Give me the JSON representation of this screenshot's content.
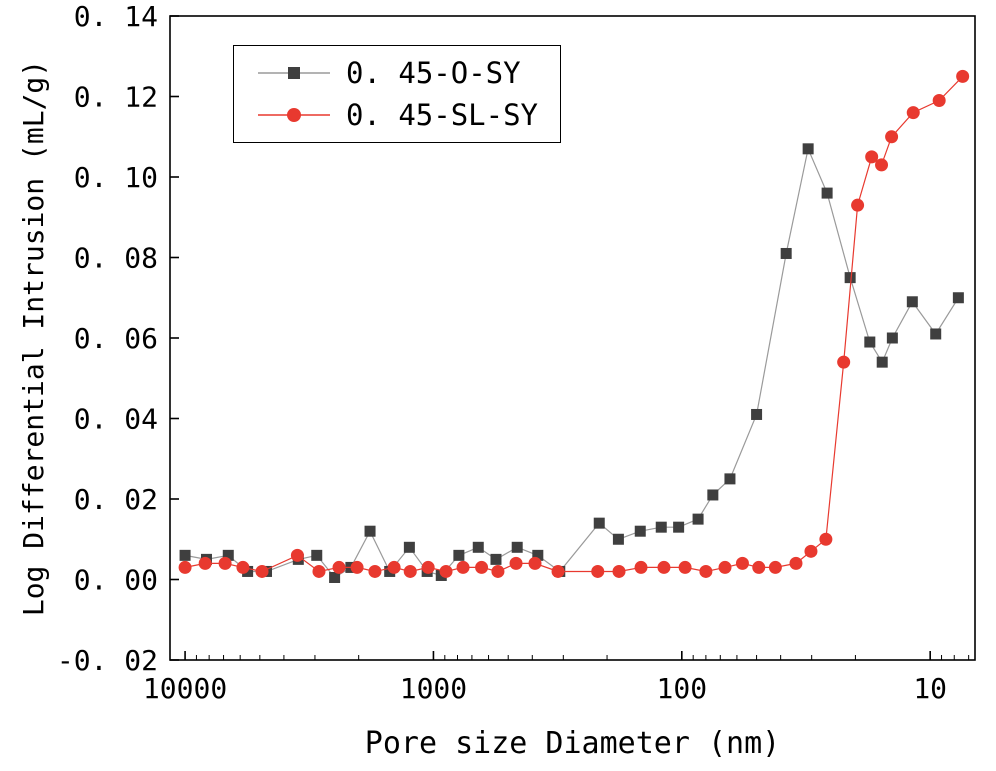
{
  "figure": {
    "background": "#ffffff"
  },
  "chart_data": {
    "type": "line",
    "xlabel": "Pore size Diameter (nm)",
    "ylabel": "Log Differential Intrusion (mL/g)",
    "x_scale": "log-reversed",
    "x_range": [
      11500,
      6.6
    ],
    "y_range": [
      -0.02,
      0.14
    ],
    "x_ticks": [
      10000,
      1000,
      100,
      10
    ],
    "x_tick_labels": [
      "10000",
      "1000",
      "100",
      "10"
    ],
    "y_ticks": [
      -0.02,
      0.0,
      0.02,
      0.04,
      0.06,
      0.08,
      0.1,
      0.12,
      0.14
    ],
    "y_tick_labels": [
      "-0. 02",
      "0. 00",
      "0. 02",
      "0. 04",
      "0. 06",
      "0. 08",
      "0. 10",
      "0. 12",
      "0. 14"
    ],
    "legend_position": "top-left",
    "series": [
      {
        "name": "0. 45-O-SY",
        "marker": "square",
        "marker_color": "#3f3f3f",
        "line_color": "#9a9a9a",
        "x": [
          10000,
          8200,
          6700,
          5600,
          4700,
          3500,
          2950,
          2500,
          2150,
          1800,
          1500,
          1250,
          1060,
          930,
          790,
          660,
          560,
          460,
          380,
          310,
          215,
          180,
          147,
          121,
          103,
          86,
          75,
          64,
          50,
          38,
          31,
          26,
          21,
          17.5,
          15.6,
          14.2,
          11.8,
          9.5,
          7.7
        ],
        "y": [
          0.006,
          0.005,
          0.006,
          0.002,
          0.002,
          0.005,
          0.006,
          0.0005,
          0.003,
          0.012,
          0.002,
          0.008,
          0.002,
          0.001,
          0.006,
          0.008,
          0.005,
          0.008,
          0.006,
          0.002,
          0.014,
          0.01,
          0.012,
          0.013,
          0.013,
          0.015,
          0.021,
          0.025,
          0.041,
          0.081,
          0.107,
          0.096,
          0.075,
          0.059,
          0.054,
          0.06,
          0.069,
          0.061,
          0.07
        ]
      },
      {
        "name": "0. 45-SL-SY",
        "marker": "circle",
        "marker_color": "#e8392f",
        "line_color": "#e8392f",
        "x": [
          10000,
          8300,
          6900,
          5850,
          4900,
          3530,
          2890,
          2400,
          2030,
          1720,
          1440,
          1240,
          1050,
          890,
          760,
          640,
          550,
          465,
          390,
          315,
          218,
          179,
          146,
          118,
          97,
          80,
          67,
          57,
          49,
          42,
          34.7,
          30.2,
          26.3,
          22.3,
          19.6,
          17.2,
          15.7,
          14.3,
          11.7,
          9.2,
          7.4
        ],
        "y": [
          0.003,
          0.004,
          0.004,
          0.003,
          0.002,
          0.006,
          0.002,
          0.003,
          0.003,
          0.002,
          0.003,
          0.002,
          0.003,
          0.002,
          0.003,
          0.003,
          0.002,
          0.004,
          0.004,
          0.002,
          0.002,
          0.002,
          0.003,
          0.003,
          0.003,
          0.002,
          0.003,
          0.004,
          0.003,
          0.003,
          0.004,
          0.007,
          0.01,
          0.054,
          0.093,
          0.105,
          0.103,
          0.11,
          0.116,
          0.119,
          0.125
        ]
      }
    ]
  }
}
